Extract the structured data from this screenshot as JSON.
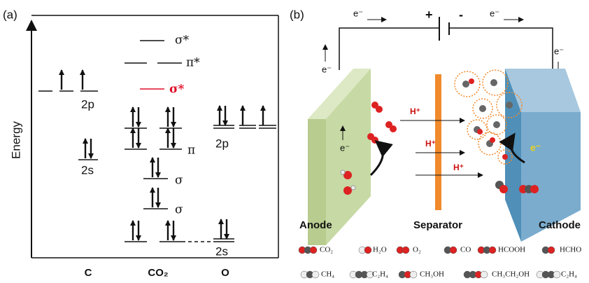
{
  "panel_a": {
    "label": "(a)",
    "y_axis_label": "Energy",
    "levels": {
      "sigma_star_top": "σ*",
      "pi_star": "π*",
      "sigma_star_red": "σ*",
      "c_2p": "2p",
      "c_2s": "2s",
      "pi": "π",
      "sigma_1": "σ",
      "sigma_2": "σ",
      "o_2p": "2p",
      "o_2s": "2s"
    },
    "columns": [
      "C",
      "CO₂",
      "O"
    ]
  },
  "panel_b": {
    "label": "(b)",
    "circuit": {
      "e_top_left": "e⁻",
      "plus": "+",
      "minus": "-",
      "e_top_right": "e⁻",
      "e_left": "e⁻",
      "e_right": "e⁻"
    },
    "protons": [
      "H⁺",
      "H⁺",
      "H⁺"
    ],
    "e_anode": "e⁻",
    "e_cathode": "e⁻",
    "electrodes": [
      "Anode",
      "Separator",
      "Cathode"
    ],
    "legend": [
      "CO₂",
      "H₂O",
      "O₂",
      "CO",
      "HCOOH",
      "HCHO",
      "CH₄",
      "C₂H₄",
      "CH₃OH",
      "CH₃CH₂OH",
      "C₂H₄"
    ]
  }
}
